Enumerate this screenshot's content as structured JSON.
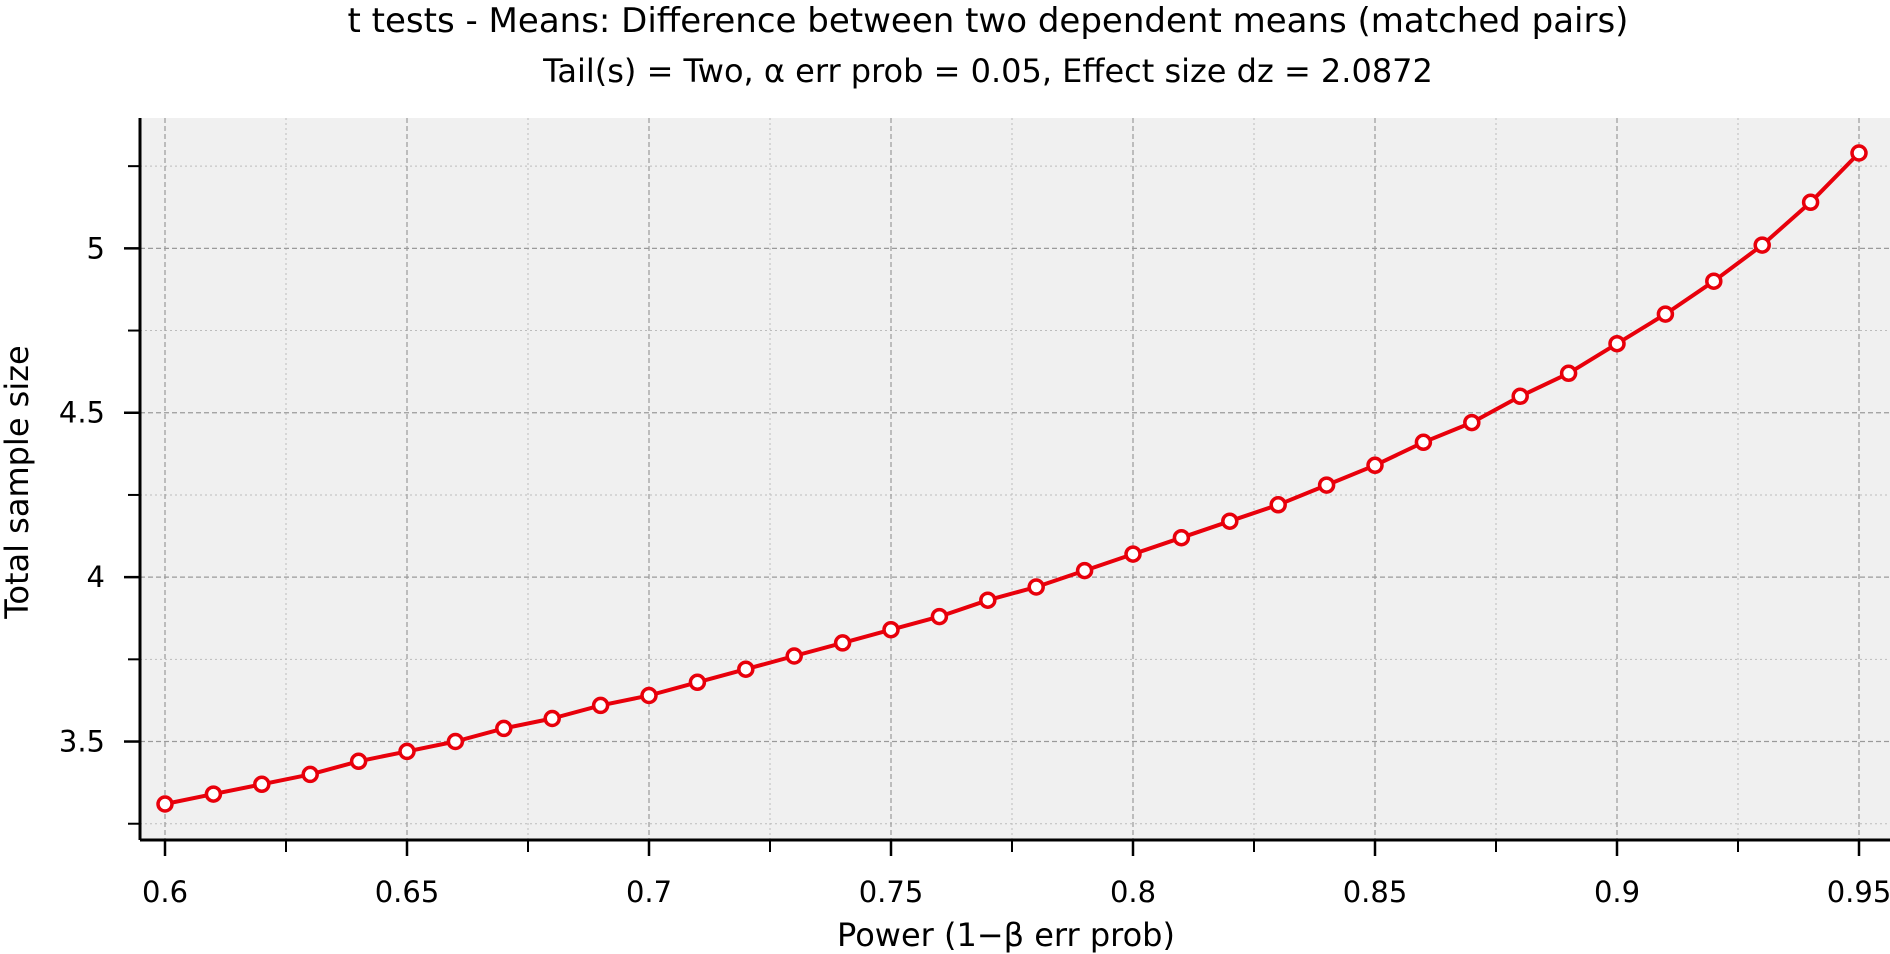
{
  "chart_data": {
    "type": "line",
    "title": "t tests - Means: Difference between two dependent means (matched pairs)",
    "subtitle": "Tail(s) = Two, α err prob = 0.05, Effect size dz = 2.0872",
    "xlabel": "Power (1−β err prob)",
    "ylabel": "Total sample size",
    "xlim": [
      0.6,
      0.95
    ],
    "ylim": [
      3.25,
      5.3
    ],
    "x_ticks": [
      0.6,
      0.65,
      0.7,
      0.75,
      0.8,
      0.85,
      0.9,
      0.95
    ],
    "x_tick_labels": [
      "0.6",
      "0.65",
      "0.7",
      "0.75",
      "0.8",
      "0.85",
      "0.9",
      "0.95"
    ],
    "y_ticks": [
      3.5,
      4,
      4.5,
      5
    ],
    "y_tick_labels": [
      "3.5",
      "4",
      "4.5",
      "5"
    ],
    "grid": true,
    "series": [
      {
        "color": "#e8000b",
        "marker": "circle-open",
        "x": [
          0.6,
          0.61,
          0.62,
          0.63,
          0.64,
          0.65,
          0.66,
          0.67,
          0.68,
          0.69,
          0.7,
          0.71,
          0.72,
          0.73,
          0.74,
          0.75,
          0.76,
          0.77,
          0.78,
          0.79,
          0.8,
          0.81,
          0.82,
          0.83,
          0.84,
          0.85,
          0.86,
          0.87,
          0.88,
          0.89,
          0.9,
          0.91,
          0.92,
          0.93,
          0.94,
          0.95
        ],
        "y": [
          3.31,
          3.34,
          3.37,
          3.4,
          3.44,
          3.47,
          3.5,
          3.54,
          3.57,
          3.61,
          3.64,
          3.68,
          3.72,
          3.76,
          3.8,
          3.84,
          3.88,
          3.93,
          3.97,
          4.02,
          4.07,
          4.12,
          4.17,
          4.22,
          4.28,
          4.34,
          4.41,
          4.47,
          4.55,
          4.62,
          4.71,
          4.8,
          4.9,
          5.01,
          5.14,
          5.29
        ]
      }
    ]
  }
}
